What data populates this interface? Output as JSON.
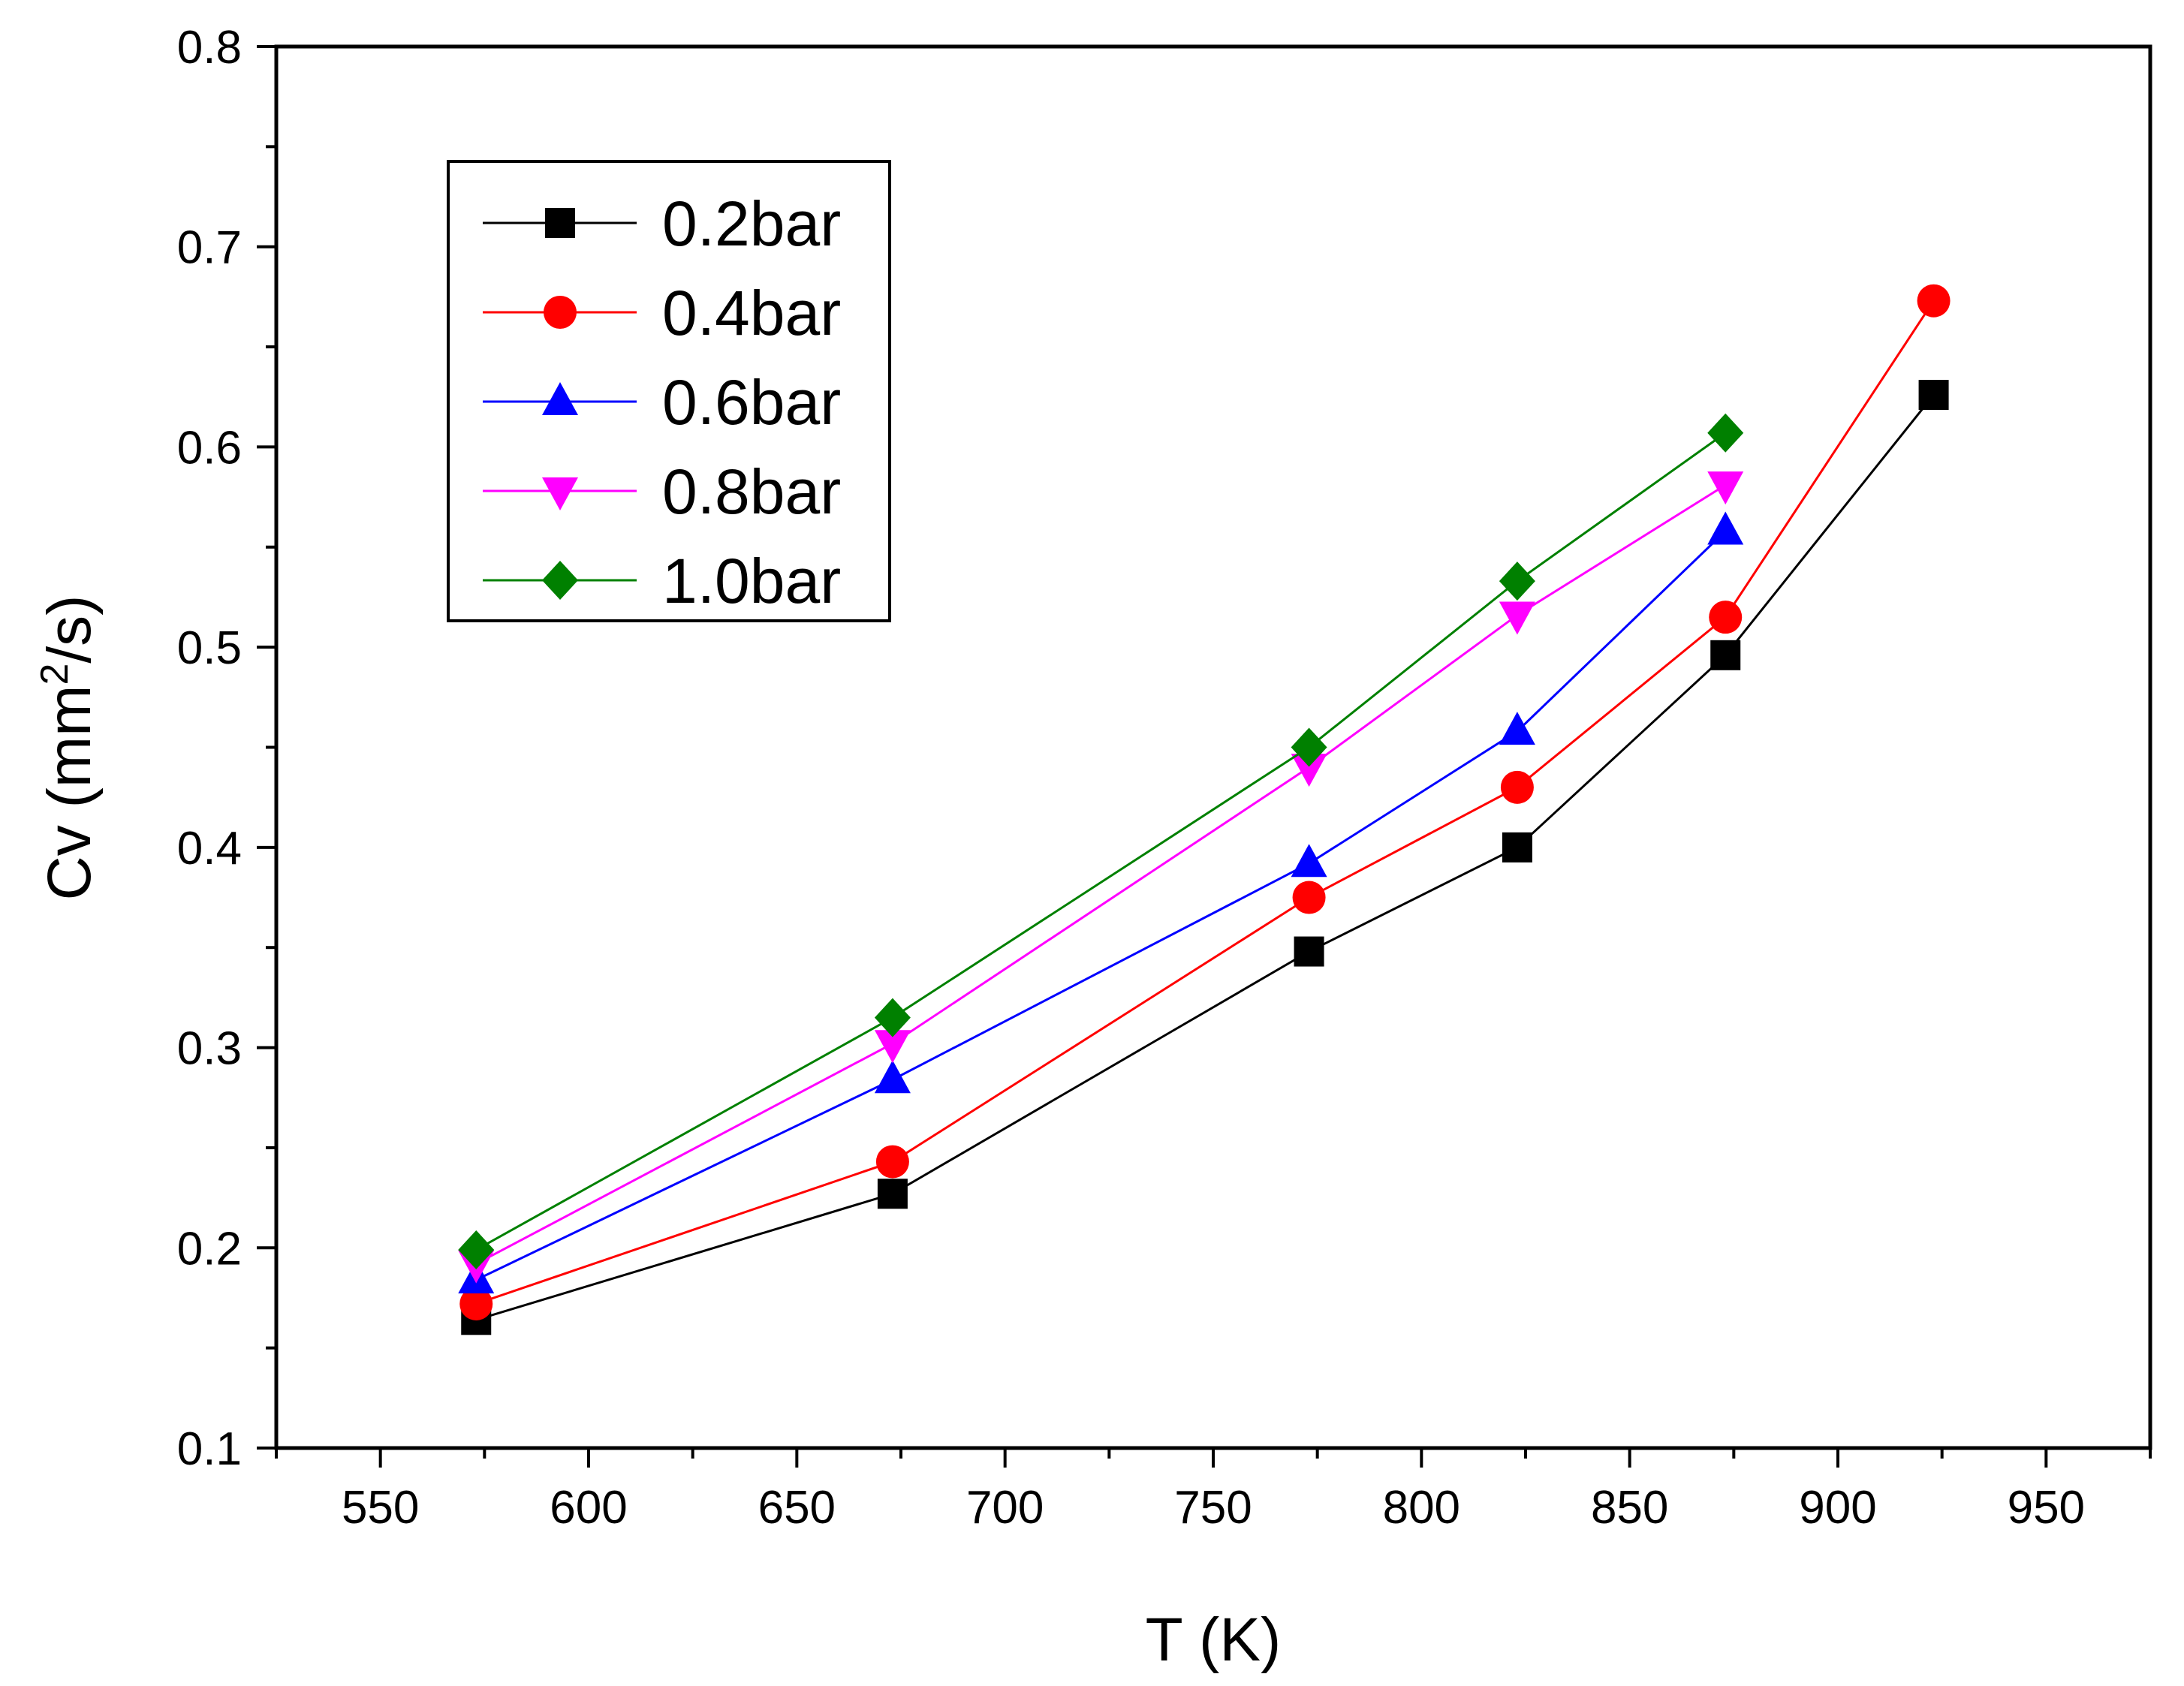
{
  "chart_data": {
    "type": "line",
    "title": "",
    "xlabel": "T (K)",
    "ylabel_main": "Cv (mm",
    "ylabel_sup": "2",
    "ylabel_tail": "/s)",
    "xlim": [
      525,
      975
    ],
    "ylim": [
      0.1,
      0.8
    ],
    "xticks": [
      550,
      600,
      650,
      700,
      750,
      800,
      850,
      900,
      950
    ],
    "xtick_labels": [
      "550",
      "600",
      "650",
      "700",
      "750",
      "800",
      "850",
      "900",
      "950"
    ],
    "yticks": [
      0.1,
      0.2,
      0.3,
      0.4,
      0.5,
      0.6,
      0.7,
      0.8
    ],
    "ytick_labels": [
      "0.1",
      "0.2",
      "0.3",
      "0.4",
      "0.5",
      "0.6",
      "0.7",
      "0.8"
    ],
    "grid": false,
    "legend_position": "top-left",
    "series": [
      {
        "name": "0.2bar",
        "color": "#000000",
        "marker": "square",
        "x": [
          573,
          673,
          773,
          823,
          873,
          923
        ],
        "values": [
          0.164,
          0.227,
          0.348,
          0.4,
          0.496,
          0.626
        ]
      },
      {
        "name": "0.4bar",
        "color": "#ff0000",
        "marker": "circle",
        "x": [
          573,
          673,
          773,
          823,
          873,
          923
        ],
        "values": [
          0.172,
          0.243,
          0.375,
          0.43,
          0.515,
          0.673
        ]
      },
      {
        "name": "0.6bar",
        "color": "#0000ff",
        "marker": "triangle-up",
        "x": [
          573,
          673,
          773,
          823,
          873
        ],
        "values": [
          0.184,
          0.284,
          0.392,
          0.458,
          0.558
        ]
      },
      {
        "name": "0.8bar",
        "color": "#ff00ff",
        "marker": "triangle-down",
        "x": [
          573,
          673,
          773,
          823,
          873
        ],
        "values": [
          0.192,
          0.302,
          0.44,
          0.516,
          0.581
        ]
      },
      {
        "name": "1.0bar",
        "color": "#008000",
        "marker": "diamond",
        "x": [
          573,
          673,
          773,
          823,
          873
        ],
        "values": [
          0.199,
          0.315,
          0.45,
          0.533,
          0.607
        ]
      }
    ]
  }
}
